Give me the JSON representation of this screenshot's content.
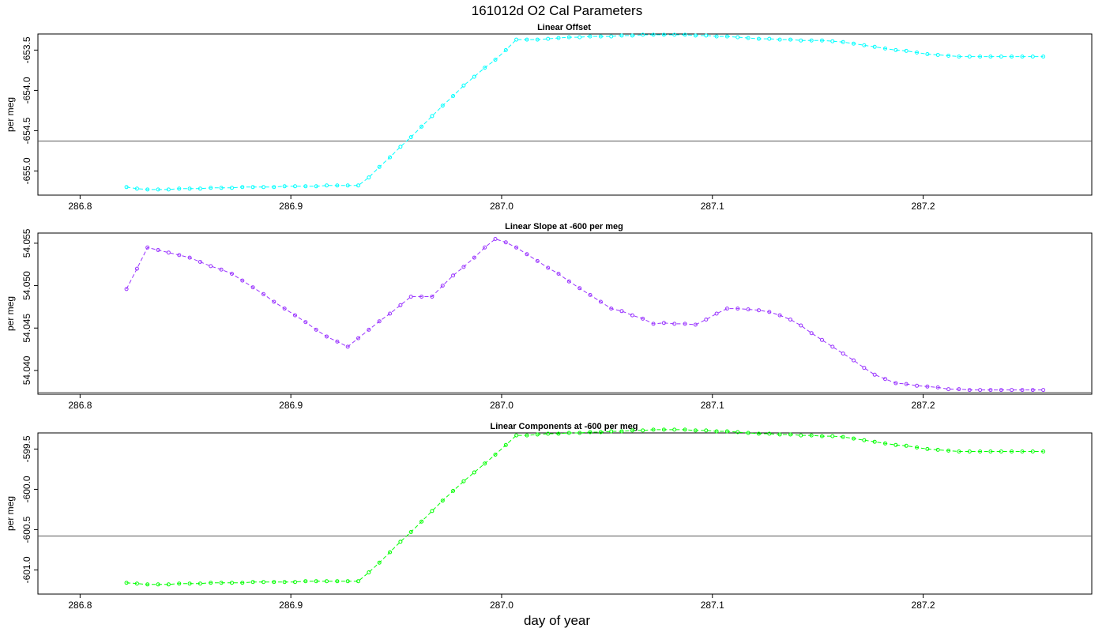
{
  "figure": {
    "title": "161012d   O2 Cal Parameters",
    "xlabel": "day of year"
  },
  "chart_data": [
    {
      "type": "line",
      "title": "Linear Offset",
      "ylabel": "per meg",
      "color": "#00ffff",
      "xlim": [
        286.78,
        287.28
      ],
      "ylim": [
        -655.3,
        -653.3
      ],
      "xticks": [
        286.8,
        286.9,
        287.0,
        287.1,
        287.2
      ],
      "xtick_labels": [
        "286.8",
        "286.9",
        "287.0",
        "287.1",
        "287.2"
      ],
      "yticks": [
        -655.0,
        -654.5,
        -654.0,
        -653.5
      ],
      "ytick_labels": [
        "-655.0",
        "-654.5",
        "-654.0",
        "-653.5"
      ],
      "hline": -654.63,
      "x": [
        286.822,
        286.827,
        286.832,
        286.837,
        286.842,
        286.847,
        286.852,
        286.857,
        286.862,
        286.867,
        286.872,
        286.877,
        286.882,
        286.887,
        286.892,
        286.897,
        286.902,
        286.907,
        286.912,
        286.917,
        286.922,
        286.927,
        286.932,
        286.937,
        286.942,
        286.947,
        286.952,
        286.957,
        286.962,
        286.967,
        286.972,
        286.977,
        286.982,
        286.987,
        286.992,
        286.997,
        287.002,
        287.007,
        287.012,
        287.017,
        287.022,
        287.027,
        287.032,
        287.037,
        287.042,
        287.047,
        287.052,
        287.057,
        287.062,
        287.067,
        287.072,
        287.077,
        287.082,
        287.087,
        287.092,
        287.097,
        287.102,
        287.107,
        287.112,
        287.117,
        287.122,
        287.127,
        287.132,
        287.137,
        287.142,
        287.147,
        287.152,
        287.157,
        287.162,
        287.167,
        287.172,
        287.177,
        287.182,
        287.187,
        287.192,
        287.197,
        287.202,
        287.207,
        287.212,
        287.217,
        287.222,
        287.227,
        287.232,
        287.237,
        287.242,
        287.247,
        287.252,
        287.257
      ],
      "y": [
        -655.2,
        -655.22,
        -655.23,
        -655.23,
        -655.23,
        -655.22,
        -655.22,
        -655.22,
        -655.21,
        -655.21,
        -655.21,
        -655.2,
        -655.2,
        -655.2,
        -655.2,
        -655.19,
        -655.19,
        -655.19,
        -655.19,
        -655.18,
        -655.18,
        -655.18,
        -655.18,
        -655.08,
        -654.95,
        -654.83,
        -654.7,
        -654.58,
        -654.45,
        -654.32,
        -654.19,
        -654.07,
        -653.94,
        -653.83,
        -653.72,
        -653.62,
        -653.5,
        -653.37,
        -653.37,
        -653.37,
        -653.36,
        -653.35,
        -653.34,
        -653.34,
        -653.33,
        -653.33,
        -653.33,
        -653.32,
        -653.32,
        -653.31,
        -653.31,
        -653.31,
        -653.31,
        -653.31,
        -653.32,
        -653.32,
        -653.33,
        -653.33,
        -653.34,
        -653.35,
        -653.36,
        -653.36,
        -653.37,
        -653.37,
        -653.38,
        -653.38,
        -653.38,
        -653.39,
        -653.4,
        -653.42,
        -653.44,
        -653.46,
        -653.48,
        -653.5,
        -653.51,
        -653.53,
        -653.55,
        -653.56,
        -653.57,
        -653.58,
        -653.58,
        -653.58,
        -653.58,
        -653.58,
        -653.58,
        -653.58,
        -653.58,
        -653.58
      ]
    },
    {
      "type": "line",
      "title": "Linear Slope at -600 per meg",
      "ylabel": "per meg",
      "color": "#9933ff",
      "xlim": [
        286.78,
        287.28
      ],
      "ylim": [
        54.0372,
        54.0562
      ],
      "xticks": [
        286.8,
        286.9,
        287.0,
        287.1,
        287.2
      ],
      "xtick_labels": [
        "286.8",
        "286.9",
        "287.0",
        "287.1",
        "287.2"
      ],
      "yticks": [
        54.04,
        54.045,
        54.05,
        54.055
      ],
      "ytick_labels": [
        "54.040",
        "54.045",
        "54.050",
        "54.055"
      ],
      "hline": 54.0374,
      "x": [
        286.822,
        286.827,
        286.832,
        286.837,
        286.842,
        286.847,
        286.852,
        286.857,
        286.862,
        286.867,
        286.872,
        286.877,
        286.882,
        286.887,
        286.892,
        286.897,
        286.902,
        286.907,
        286.912,
        286.917,
        286.922,
        286.927,
        286.932,
        286.937,
        286.942,
        286.947,
        286.952,
        286.957,
        286.962,
        286.967,
        286.972,
        286.977,
        286.982,
        286.987,
        286.992,
        286.997,
        287.002,
        287.007,
        287.012,
        287.017,
        287.022,
        287.027,
        287.032,
        287.037,
        287.042,
        287.047,
        287.052,
        287.057,
        287.062,
        287.067,
        287.072,
        287.077,
        287.082,
        287.087,
        287.092,
        287.097,
        287.102,
        287.107,
        287.112,
        287.117,
        287.122,
        287.127,
        287.132,
        287.137,
        287.142,
        287.147,
        287.152,
        287.157,
        287.162,
        287.167,
        287.172,
        287.177,
        287.182,
        287.187,
        287.192,
        287.197,
        287.202,
        287.207,
        287.212,
        287.217,
        287.222,
        287.227,
        287.232,
        287.237,
        287.242,
        287.247,
        287.252,
        287.257
      ],
      "y": [
        54.0496,
        54.052,
        54.0545,
        54.0542,
        54.0539,
        54.0536,
        54.0533,
        54.0528,
        54.0523,
        54.0519,
        54.0514,
        54.0506,
        54.0498,
        54.049,
        54.0481,
        54.0473,
        54.0465,
        54.0457,
        54.0448,
        54.044,
        54.0434,
        54.0428,
        54.0438,
        54.0448,
        54.0458,
        54.0467,
        54.0477,
        54.0487,
        54.0487,
        54.0487,
        54.05,
        54.0512,
        54.0522,
        54.0533,
        54.0545,
        54.0555,
        54.0551,
        54.0545,
        54.0537,
        54.0529,
        54.0521,
        54.0514,
        54.0505,
        54.0497,
        54.0489,
        54.0481,
        54.0473,
        54.047,
        54.0465,
        54.0461,
        54.0455,
        54.0456,
        54.0455,
        54.0455,
        54.0454,
        54.046,
        54.0467,
        54.0473,
        54.0473,
        54.0472,
        54.0471,
        54.0469,
        54.0465,
        54.046,
        54.0453,
        54.0444,
        54.0436,
        54.0428,
        54.042,
        54.0412,
        54.0403,
        54.0395,
        54.039,
        54.0385,
        54.0384,
        54.0382,
        54.0381,
        54.038,
        54.0378,
        54.0378,
        54.0377,
        54.0377,
        54.0377,
        54.0377,
        54.0377,
        54.0377,
        54.0377,
        54.0377
      ],
      "draw_count": 71
    },
    {
      "type": "line",
      "title": "Linear Components at -600 per meg",
      "ylabel": "per meg",
      "color": "#00ff00",
      "xlim": [
        286.78,
        287.28
      ],
      "ylim": [
        -601.3,
        -599.3
      ],
      "xticks": [
        286.8,
        286.9,
        287.0,
        287.1,
        287.2
      ],
      "xtick_labels": [
        "286.8",
        "286.9",
        "287.0",
        "287.1",
        "287.2"
      ],
      "yticks": [
        -601.0,
        -600.5,
        -600.0,
        -599.5
      ],
      "ytick_labels": [
        "-601.0",
        "-600.5",
        "-600.0",
        "-599.5"
      ],
      "hline": -600.58,
      "x": [
        286.822,
        286.827,
        286.832,
        286.837,
        286.842,
        286.847,
        286.852,
        286.857,
        286.862,
        286.867,
        286.872,
        286.877,
        286.882,
        286.887,
        286.892,
        286.897,
        286.902,
        286.907,
        286.912,
        286.917,
        286.922,
        286.927,
        286.932,
        286.937,
        286.942,
        286.947,
        286.952,
        286.957,
        286.962,
        286.967,
        286.972,
        286.977,
        286.982,
        286.987,
        286.992,
        286.997,
        287.002,
        287.007,
        287.012,
        287.017,
        287.022,
        287.027,
        287.032,
        287.037,
        287.042,
        287.047,
        287.052,
        287.057,
        287.062,
        287.067,
        287.072,
        287.077,
        287.082,
        287.087,
        287.092,
        287.097,
        287.102,
        287.107,
        287.112,
        287.117,
        287.122,
        287.127,
        287.132,
        287.137,
        287.142,
        287.147,
        287.152,
        287.157,
        287.162,
        287.167,
        287.172,
        287.177,
        287.182,
        287.187,
        287.192,
        287.197,
        287.202,
        287.207,
        287.212,
        287.217,
        287.222,
        287.227,
        287.232,
        287.237,
        287.242,
        287.247,
        287.252,
        287.257
      ],
      "y": [
        -601.16,
        -601.17,
        -601.18,
        -601.18,
        -601.18,
        -601.17,
        -601.17,
        -601.17,
        -601.16,
        -601.16,
        -601.16,
        -601.16,
        -601.15,
        -601.15,
        -601.15,
        -601.15,
        -601.15,
        -601.14,
        -601.14,
        -601.14,
        -601.14,
        -601.14,
        -601.14,
        -601.03,
        -600.91,
        -600.78,
        -600.65,
        -600.53,
        -600.4,
        -600.27,
        -600.14,
        -600.02,
        -599.9,
        -599.79,
        -599.68,
        -599.57,
        -599.45,
        -599.33,
        -599.33,
        -599.32,
        -599.31,
        -599.31,
        -599.3,
        -599.3,
        -599.29,
        -599.29,
        -599.28,
        -599.28,
        -599.27,
        -599.27,
        -599.26,
        -599.26,
        -599.26,
        -599.26,
        -599.27,
        -599.27,
        -599.28,
        -599.28,
        -599.29,
        -599.3,
        -599.31,
        -599.31,
        -599.32,
        -599.32,
        -599.33,
        -599.33,
        -599.34,
        -599.34,
        -599.35,
        -599.37,
        -599.39,
        -599.41,
        -599.43,
        -599.45,
        -599.46,
        -599.48,
        -599.5,
        -599.51,
        -599.52,
        -599.53,
        -599.53,
        -599.53,
        -599.53,
        -599.53,
        -599.53,
        -599.53,
        -599.53,
        -599.53
      ]
    }
  ]
}
